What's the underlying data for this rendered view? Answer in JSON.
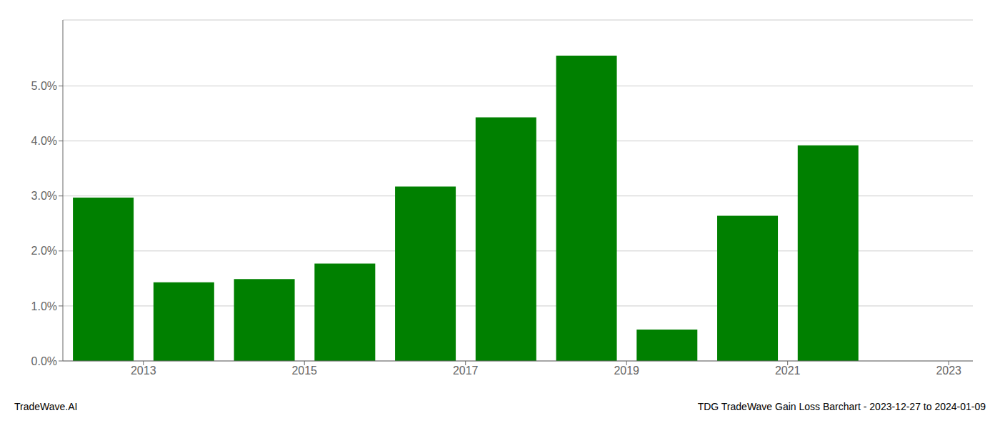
{
  "chart_data": {
    "type": "bar",
    "x": [
      2013,
      2014,
      2015,
      2016,
      2017,
      2018,
      2019,
      2020,
      2021,
      2022
    ],
    "values": [
      0.0297,
      0.0143,
      0.0149,
      0.0177,
      0.0317,
      0.0443,
      0.0555,
      0.0057,
      0.0264,
      0.0392
    ],
    "color": "#008000",
    "xlim": [
      2012.5,
      2023.8
    ],
    "xticks": [
      {
        "value": 2013.5,
        "label": "2013"
      },
      {
        "value": 2015.5,
        "label": "2015"
      },
      {
        "value": 2017.5,
        "label": "2017"
      },
      {
        "value": 2019.5,
        "label": "2019"
      },
      {
        "value": 2021.5,
        "label": "2021"
      },
      {
        "value": 2023.5,
        "label": "2023"
      }
    ],
    "ylim": [
      0,
      0.062
    ],
    "yticks": [
      {
        "value": 0.0,
        "label": "0.0%"
      },
      {
        "value": 0.01,
        "label": "1.0%"
      },
      {
        "value": 0.02,
        "label": "2.0%"
      },
      {
        "value": 0.03,
        "label": "3.0%"
      },
      {
        "value": 0.04,
        "label": "4.0%"
      },
      {
        "value": 0.05,
        "label": "5.0%"
      }
    ],
    "grid": true,
    "annotations": [
      "TradeWave.AI",
      "TDG TradeWave Gain Loss Barchart - 2023-12-27 to 2024-01-09"
    ]
  }
}
